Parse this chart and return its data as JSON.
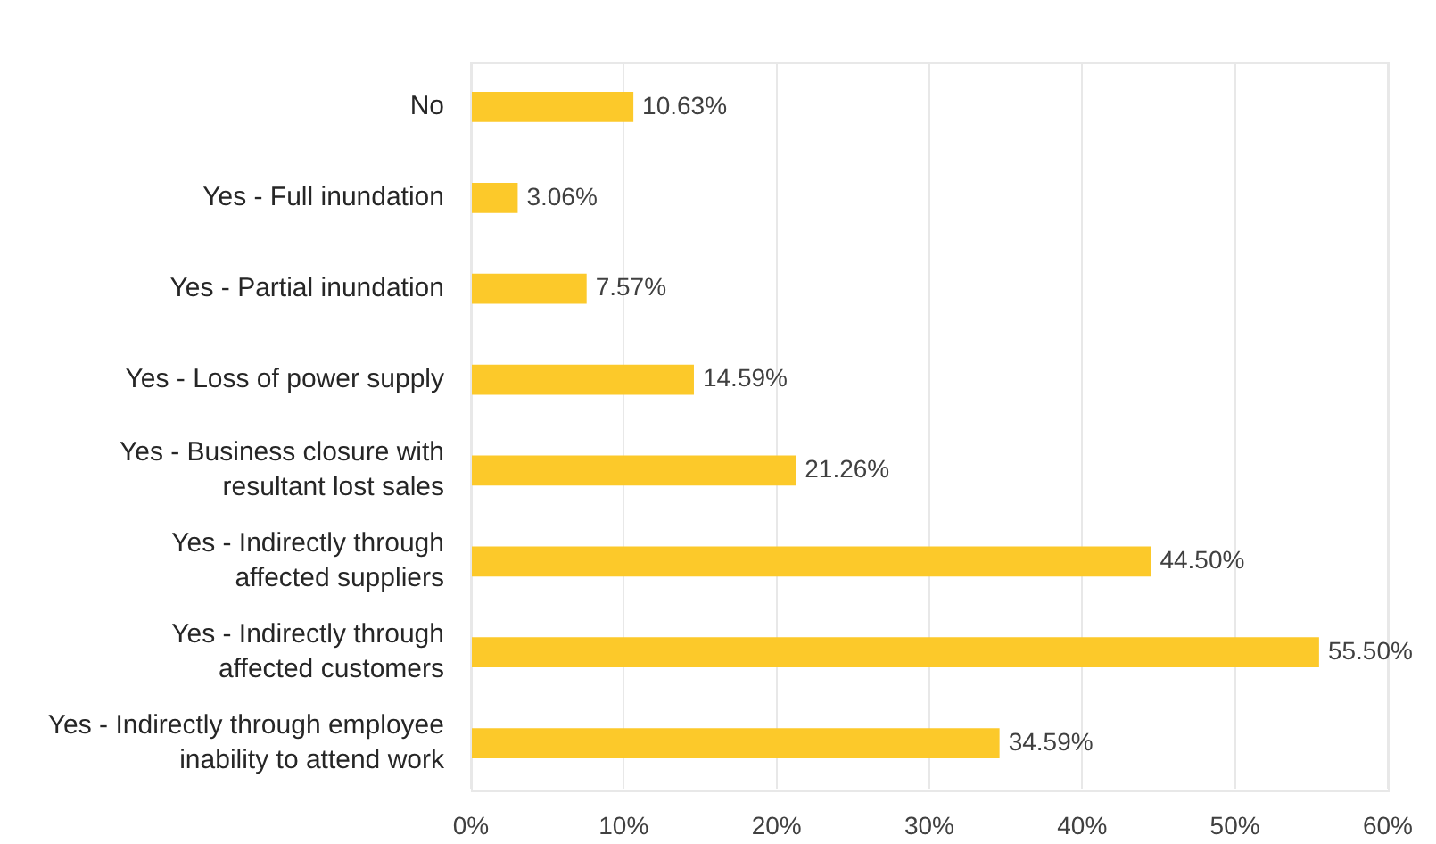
{
  "chart_data": {
    "type": "bar",
    "orientation": "horizontal",
    "categories": [
      "No",
      "Yes - Full inundation",
      "Yes - Partial inundation",
      "Yes - Loss of power supply",
      "Yes - Business closure with\nresultant lost sales",
      "Yes - Indirectly through\naffected suppliers",
      "Yes - Indirectly through\naffected customers",
      "Yes - Indirectly through employee\ninability to attend work"
    ],
    "values": [
      10.63,
      3.06,
      7.57,
      14.59,
      21.26,
      44.5,
      55.5,
      34.59
    ],
    "value_labels": [
      "10.63%",
      "3.06%",
      "7.57%",
      "14.59%",
      "21.26%",
      "44.50%",
      "55.50%",
      "34.59%"
    ],
    "color": "#fcc92a",
    "xlim": [
      0,
      60
    ],
    "xticks": [
      {
        "value": 0,
        "label": "0%"
      },
      {
        "value": 10,
        "label": "10%"
      },
      {
        "value": 20,
        "label": "20%"
      },
      {
        "value": 30,
        "label": "30%"
      },
      {
        "value": 40,
        "label": "40%"
      },
      {
        "value": 50,
        "label": "50%"
      },
      {
        "value": 60,
        "label": "60%"
      }
    ],
    "grid": "x"
  }
}
